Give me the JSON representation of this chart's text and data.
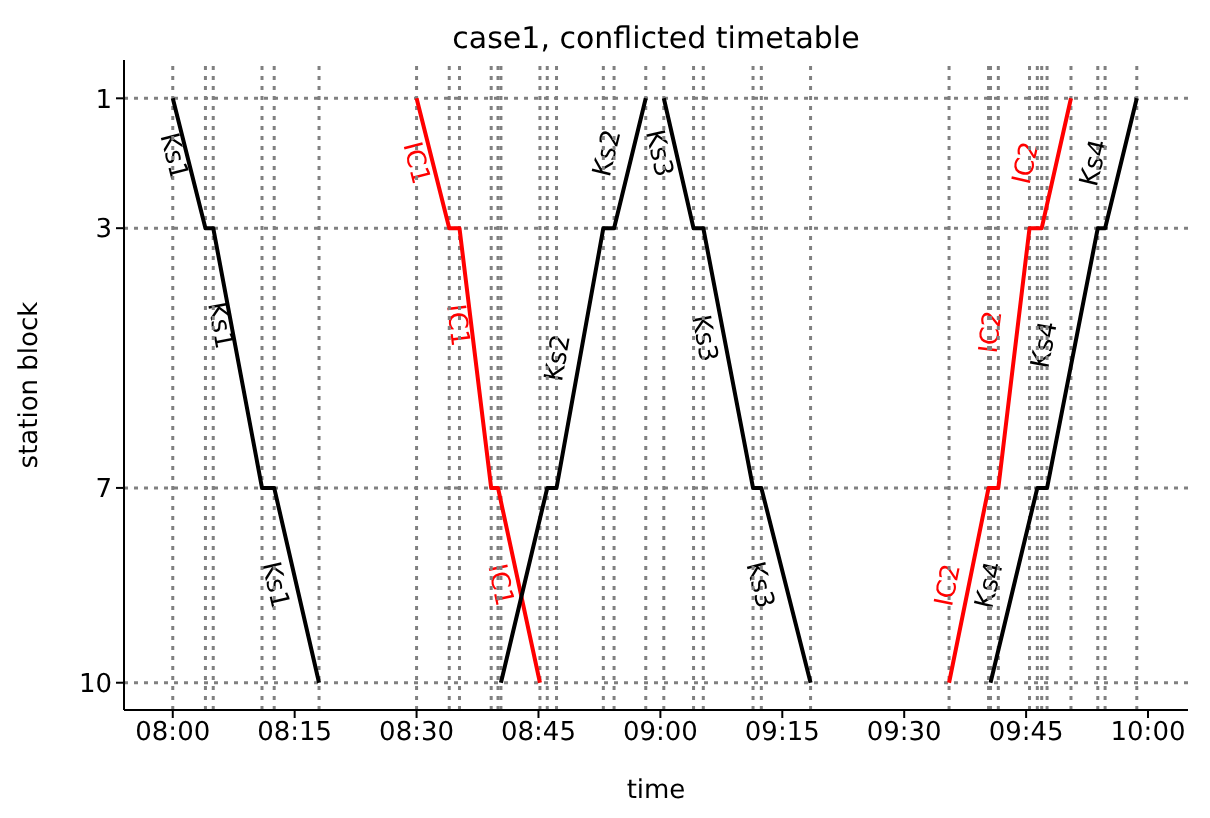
{
  "chart_data": {
    "type": "line",
    "title": "case1, conflicted timetable",
    "xlabel": "time",
    "ylabel": "station block",
    "xlim": [
      7.9,
      10.082
    ],
    "ylim": [
      10.42,
      0.41
    ],
    "xticks": [
      {
        "value": 8,
        "label": "08:00"
      },
      {
        "value": 8.25,
        "label": "08:15"
      },
      {
        "value": 8.5,
        "label": "08:30"
      },
      {
        "value": 8.75,
        "label": "08:45"
      },
      {
        "value": 9,
        "label": "09:00"
      },
      {
        "value": 9.25,
        "label": "09:15"
      },
      {
        "value": 9.5,
        "label": "09:30"
      },
      {
        "value": 9.75,
        "label": "09:45"
      },
      {
        "value": 10,
        "label": "10:00"
      }
    ],
    "yticks": [
      1,
      3,
      7,
      10
    ],
    "grid": "y",
    "legend": false,
    "marker": "none",
    "line_style": "solid",
    "series": [
      {
        "color": "#000000",
        "x": [
          8.0,
          8.067,
          8.083,
          8.183,
          8.208,
          8.3
        ],
        "values": [
          1,
          3,
          3,
          7,
          7,
          10
        ]
      },
      {
        "color": "#ff0000",
        "x": [
          8.5,
          8.567,
          8.588,
          8.653,
          8.667,
          8.753
        ],
        "values": [
          1,
          3,
          3,
          7,
          7,
          10
        ]
      },
      {
        "color": "#000000",
        "x": [
          8.673,
          8.768,
          8.787,
          8.883,
          8.905,
          8.97
        ],
        "values": [
          10,
          7,
          7,
          3,
          3,
          1
        ]
      },
      {
        "color": "#000000",
        "x": [
          9.007,
          9.068,
          9.088,
          9.19,
          9.207,
          9.308
        ],
        "values": [
          1,
          3,
          3,
          7,
          7,
          10
        ]
      },
      {
        "color": "#ff0000",
        "x": [
          9.592,
          9.673,
          9.693,
          9.757,
          9.782,
          9.842
        ],
        "values": [
          10,
          7,
          7,
          3,
          3,
          1
        ]
      },
      {
        "color": "#000000",
        "x": [
          9.677,
          9.773,
          9.793,
          9.897,
          9.912,
          9.977
        ],
        "values": [
          10,
          7,
          7,
          3,
          3,
          1
        ]
      }
    ],
    "annotations": [
      {
        "text": "Ks1",
        "x": 8.0,
        "y": 1.9
      },
      {
        "text": "Ks1",
        "x": 8.095,
        "y": 4.5
      },
      {
        "text": "Ks1",
        "x": 8.208,
        "y": 8.5
      },
      {
        "text": "IC1",
        "x": 8.497,
        "y": 2.0
      },
      {
        "text": "IC1",
        "x": 8.582,
        "y": 4.5
      },
      {
        "text": "IC1",
        "x": 8.67,
        "y": 8.5
      },
      {
        "text": "Ks2",
        "x": 8.792,
        "y": 5.0
      },
      {
        "text": "Ks2",
        "x": 8.893,
        "y": 1.85
      },
      {
        "text": "Ks3",
        "x": 8.995,
        "y": 1.85
      },
      {
        "text": "Ks3",
        "x": 9.088,
        "y": 4.7
      },
      {
        "text": "Ks3",
        "x": 9.202,
        "y": 8.5
      },
      {
        "text": "IC2",
        "x": 9.592,
        "y": 8.5
      },
      {
        "text": "IC2",
        "x": 9.68,
        "y": 4.6
      },
      {
        "text": "IC2",
        "x": 9.752,
        "y": 2.0
      },
      {
        "text": "Ks4",
        "x": 9.677,
        "y": 8.5
      },
      {
        "text": "Ks4",
        "x": 9.79,
        "y": 4.8
      },
      {
        "text": "Ks4",
        "x": 9.892,
        "y": 2.0
      }
    ],
    "ref_lines": [
      {
        "axis": "x",
        "value": 8.0,
        "color": "#808080",
        "line_style": "dotted"
      },
      {
        "axis": "x",
        "value": 8.067,
        "color": "#808080",
        "line_style": "dotted"
      },
      {
        "axis": "x",
        "value": 8.083,
        "color": "#808080",
        "line_style": "dotted"
      },
      {
        "axis": "x",
        "value": 8.183,
        "color": "#808080",
        "line_style": "dotted"
      },
      {
        "axis": "x",
        "value": 8.208,
        "color": "#808080",
        "line_style": "dotted"
      },
      {
        "axis": "x",
        "value": 8.3,
        "color": "#808080",
        "line_style": "dotted"
      },
      {
        "axis": "x",
        "value": 8.5,
        "color": "#808080",
        "line_style": "dotted"
      },
      {
        "axis": "x",
        "value": 8.567,
        "color": "#808080",
        "line_style": "dotted"
      },
      {
        "axis": "x",
        "value": 8.588,
        "color": "#808080",
        "line_style": "dotted"
      },
      {
        "axis": "x",
        "value": 8.653,
        "color": "#808080",
        "line_style": "dotted"
      },
      {
        "axis": "x",
        "value": 8.667,
        "color": "#808080",
        "line_style": "dotted"
      },
      {
        "axis": "x",
        "value": 8.753,
        "color": "#808080",
        "line_style": "dotted"
      },
      {
        "axis": "x",
        "value": 8.673,
        "color": "#808080",
        "line_style": "dotted"
      },
      {
        "axis": "x",
        "value": 8.768,
        "color": "#808080",
        "line_style": "dotted"
      },
      {
        "axis": "x",
        "value": 8.787,
        "color": "#808080",
        "line_style": "dotted"
      },
      {
        "axis": "x",
        "value": 8.883,
        "color": "#808080",
        "line_style": "dotted"
      },
      {
        "axis": "x",
        "value": 8.905,
        "color": "#808080",
        "line_style": "dotted"
      },
      {
        "axis": "x",
        "value": 8.97,
        "color": "#808080",
        "line_style": "dotted"
      },
      {
        "axis": "x",
        "value": 9.007,
        "color": "#808080",
        "line_style": "dotted"
      },
      {
        "axis": "x",
        "value": 9.068,
        "color": "#808080",
        "line_style": "dotted"
      },
      {
        "axis": "x",
        "value": 9.088,
        "color": "#808080",
        "line_style": "dotted"
      },
      {
        "axis": "x",
        "value": 9.19,
        "color": "#808080",
        "line_style": "dotted"
      },
      {
        "axis": "x",
        "value": 9.207,
        "color": "#808080",
        "line_style": "dotted"
      },
      {
        "axis": "x",
        "value": 9.308,
        "color": "#808080",
        "line_style": "dotted"
      },
      {
        "axis": "x",
        "value": 9.592,
        "color": "#808080",
        "line_style": "dotted"
      },
      {
        "axis": "x",
        "value": 9.673,
        "color": "#808080",
        "line_style": "dotted"
      },
      {
        "axis": "x",
        "value": 9.693,
        "color": "#808080",
        "line_style": "dotted"
      },
      {
        "axis": "x",
        "value": 9.757,
        "color": "#808080",
        "line_style": "dotted"
      },
      {
        "axis": "x",
        "value": 9.782,
        "color": "#808080",
        "line_style": "dotted"
      },
      {
        "axis": "x",
        "value": 9.842,
        "color": "#808080",
        "line_style": "dotted"
      },
      {
        "axis": "x",
        "value": 9.677,
        "color": "#808080",
        "line_style": "dotted"
      },
      {
        "axis": "x",
        "value": 9.773,
        "color": "#808080",
        "line_style": "dotted"
      },
      {
        "axis": "x",
        "value": 9.793,
        "color": "#808080",
        "line_style": "dotted"
      },
      {
        "axis": "x",
        "value": 9.897,
        "color": "#808080",
        "line_style": "dotted"
      },
      {
        "axis": "x",
        "value": 9.912,
        "color": "#808080",
        "line_style": "dotted"
      },
      {
        "axis": "x",
        "value": 9.977,
        "color": "#808080",
        "line_style": "dotted"
      }
    ]
  }
}
